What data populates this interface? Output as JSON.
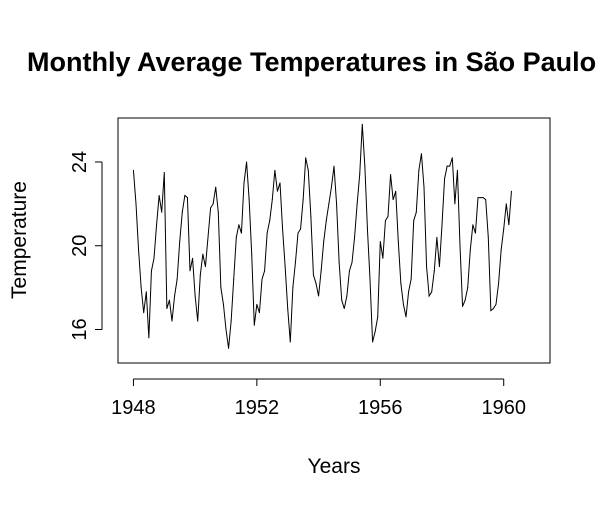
{
  "chart_data": {
    "type": "line",
    "title": "Monthly Average Temperatures in São Paulo",
    "xlabel": "Years",
    "ylabel": "Temperature",
    "xlim": [
      1947.5,
      1961.5
    ],
    "ylim": [
      14.4,
      26.1
    ],
    "x_ticks": [
      1948,
      1952,
      1956,
      1960
    ],
    "y_ticks": [
      16,
      20,
      24
    ],
    "grid": false,
    "legend": "none",
    "line_color": "#000000",
    "series": [
      {
        "x_start": 1948,
        "x_step_months": 1,
        "values": [
          23.6,
          22.0,
          19.8,
          18.0,
          16.8,
          17.8,
          15.6,
          18.8,
          19.4,
          21.0,
          22.4,
          21.6,
          23.5,
          17.0,
          17.4,
          16.4,
          17.6,
          18.4,
          20.2,
          21.6,
          22.4,
          22.3,
          18.8,
          19.4,
          17.6,
          16.4,
          18.6,
          19.6,
          19.0,
          20.4,
          21.8,
          22.0,
          22.8,
          21.6,
          18.0,
          17.2,
          16.0,
          15.1,
          16.4,
          18.4,
          20.4,
          21.0,
          20.6,
          23.0,
          24.0,
          22.2,
          19.6,
          16.2,
          17.2,
          16.8,
          18.4,
          18.8,
          20.6,
          21.2,
          22.2,
          23.6,
          22.6,
          23.0,
          20.8,
          19.0,
          17.0,
          15.4,
          18.0,
          19.2,
          20.6,
          20.8,
          22.2,
          24.2,
          23.6,
          21.4,
          18.6,
          18.2,
          17.6,
          18.8,
          20.2,
          21.2,
          22.0,
          22.8,
          23.8,
          22.0,
          19.2,
          17.4,
          17.0,
          17.6,
          18.8,
          19.2,
          20.4,
          22.0,
          23.4,
          25.8,
          23.8,
          20.8,
          18.4,
          15.4,
          15.9,
          16.6,
          20.2,
          19.4,
          21.2,
          21.4,
          23.4,
          22.2,
          22.6,
          20.2,
          18.2,
          17.2,
          16.6,
          17.8,
          18.4,
          21.2,
          21.6,
          23.6,
          24.4,
          22.8,
          19.0,
          17.6,
          17.8,
          18.8,
          20.4,
          19.0,
          21.0,
          23.2,
          23.8,
          23.8,
          24.2,
          22.0,
          23.6,
          20.0,
          17.1,
          17.4,
          18.0,
          19.8,
          21.0,
          20.6,
          22.3,
          22.3,
          22.3,
          22.2,
          20.4,
          16.9,
          17.0,
          17.2,
          18.2,
          19.8,
          20.8,
          22.0,
          21.0,
          22.6
        ]
      }
    ]
  }
}
